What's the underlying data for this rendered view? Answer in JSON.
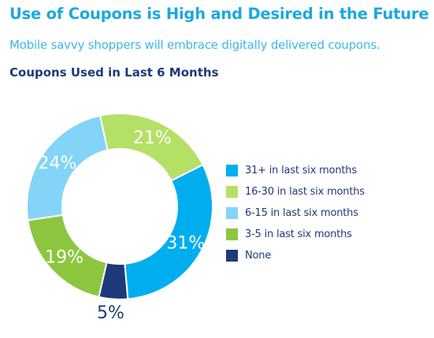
{
  "header": {
    "title": "Use of Coupons is High and Desired in the Future",
    "subtitle": "Mobile savvy shoppers will embrace digitally delivered coupons."
  },
  "chart_data": {
    "type": "pie",
    "title": "Coupons Used in Last 6 Months",
    "donut": true,
    "legend_position": "right",
    "slices": [
      {
        "label": "31+ in last six months",
        "value": 31,
        "display": "31%",
        "color": "#00aeef"
      },
      {
        "label": "16-30 in last six months",
        "value": 21,
        "display": "21%",
        "color": "#b5e066"
      },
      {
        "label": "6-15 in last six months",
        "value": 24,
        "display": "24%",
        "color": "#83d4f7"
      },
      {
        "label": "3-5 in last six months",
        "value": 19,
        "display": "19%",
        "color": "#8cc63f"
      },
      {
        "label": "None",
        "value": 5,
        "display": "5%",
        "color": "#1e3a78"
      }
    ]
  }
}
